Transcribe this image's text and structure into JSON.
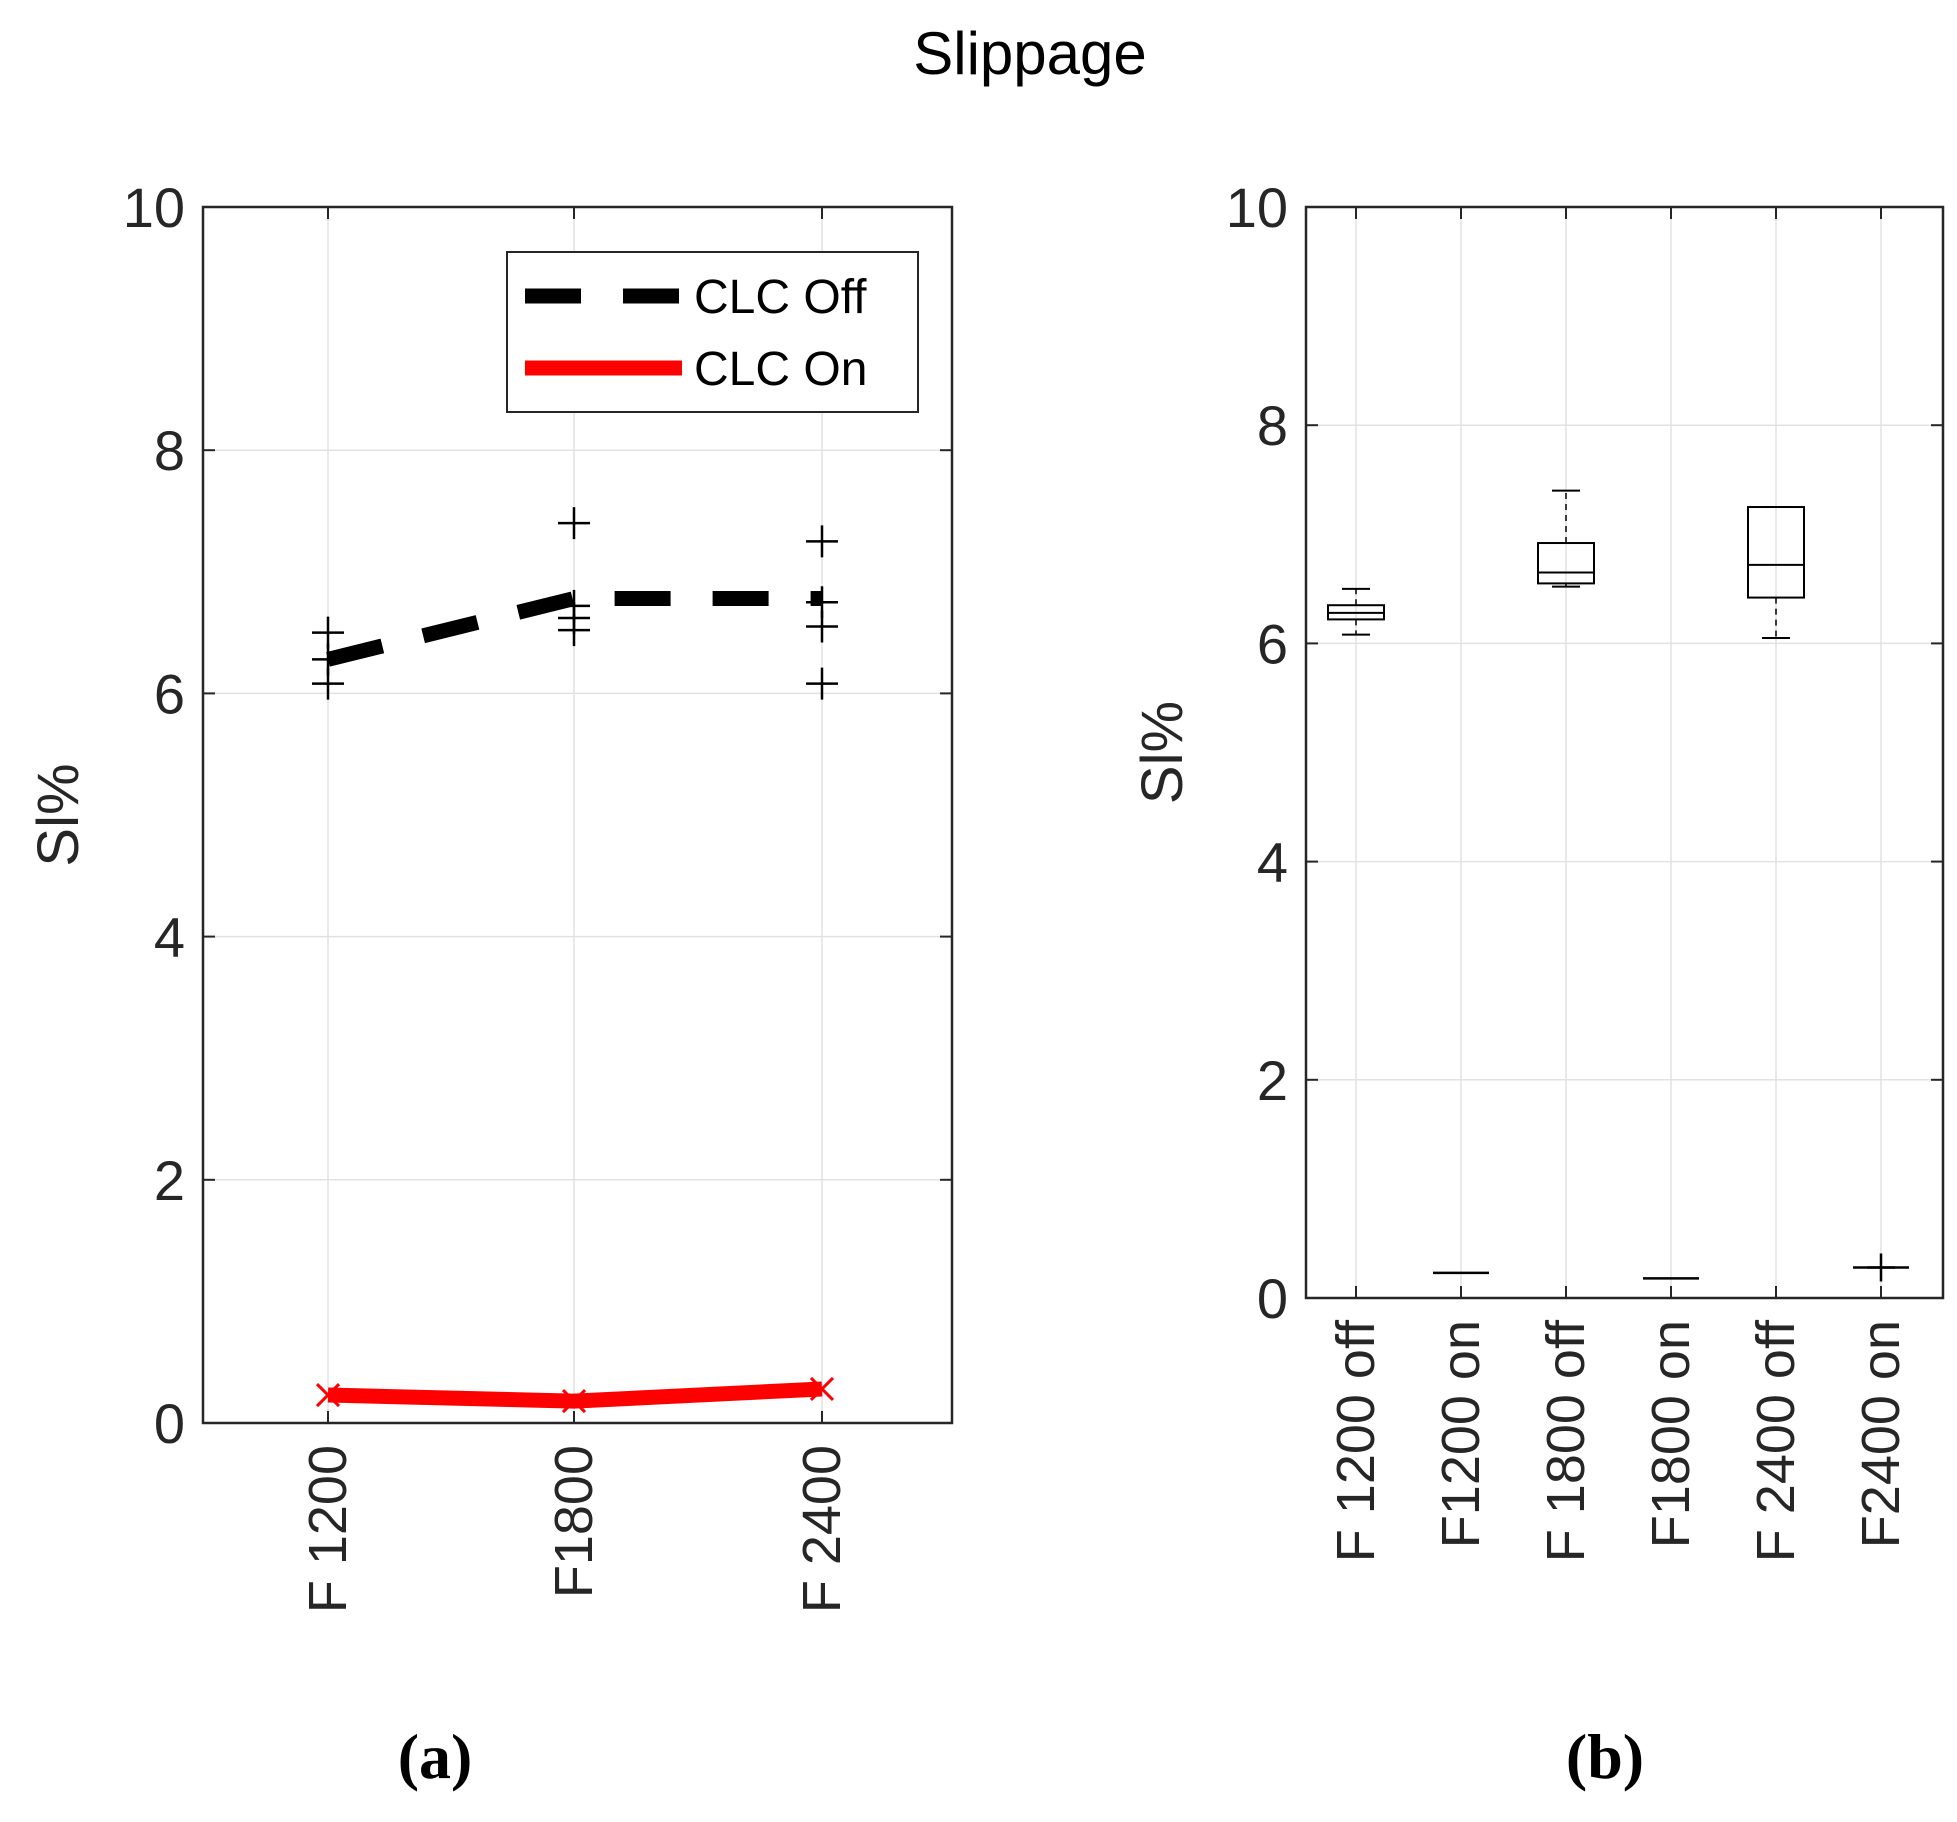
{
  "figure_title": "Slippage",
  "chart_data": [
    {
      "type": "line",
      "panel_label": "(a)",
      "title": "",
      "xlabel": "",
      "ylabel": "Sl%",
      "ylim": [
        0,
        10
      ],
      "yticks": [
        "0",
        "2",
        "4",
        "6",
        "8",
        "10"
      ],
      "categories": [
        "F 1200",
        "F1800",
        "F 2400"
      ],
      "grid": true,
      "legend": {
        "position": "top-right",
        "entries": [
          "CLC Off",
          "CLC On"
        ]
      },
      "series": [
        {
          "name": "CLC Off",
          "style": "dashed",
          "color": "#000000",
          "values": [
            6.28,
            6.78,
            6.78
          ]
        },
        {
          "name": "CLC On",
          "style": "solid",
          "color": "#ff0000",
          "values": [
            0.23,
            0.18,
            0.28
          ]
        }
      ],
      "scatter_points": [
        {
          "category": "F 1200",
          "values": [
            6.08,
            6.28,
            6.5
          ]
        },
        {
          "category": "F1800",
          "values": [
            6.52,
            6.62,
            6.72,
            7.4
          ]
        },
        {
          "category": "F 2400",
          "values": [
            6.08,
            6.55,
            6.75,
            7.25
          ]
        }
      ]
    },
    {
      "type": "box",
      "panel_label": "(b)",
      "title": "",
      "xlabel": "",
      "ylabel": "Sl%",
      "ylim": [
        0,
        10
      ],
      "yticks": [
        "0",
        "2",
        "4",
        "6",
        "8",
        "10"
      ],
      "categories": [
        "F 1200 off",
        "F1200 on",
        "F 1800 off",
        "F1800 on",
        "F 2400 off",
        "F2400 on"
      ],
      "grid": true,
      "boxes": [
        {
          "category": "F 1200 off",
          "whisker_low": 6.08,
          "q1": 6.22,
          "median": 6.28,
          "q3": 6.35,
          "whisker_high": 6.5
        },
        {
          "category": "F1200 on",
          "whisker_low": 0.23,
          "q1": 0.23,
          "median": 0.23,
          "q3": 0.23,
          "whisker_high": 0.23
        },
        {
          "category": "F 1800 off",
          "whisker_low": 6.52,
          "q1": 6.55,
          "median": 6.65,
          "q3": 6.92,
          "whisker_high": 7.4
        },
        {
          "category": "F1800 on",
          "whisker_low": 0.18,
          "q1": 0.18,
          "median": 0.18,
          "q3": 0.18,
          "whisker_high": 0.18
        },
        {
          "category": "F 2400 off",
          "whisker_low": 6.05,
          "q1": 6.42,
          "median": 6.72,
          "q3": 7.25,
          "whisker_high": 7.25
        },
        {
          "category": "F2400 on",
          "whisker_low": 0.28,
          "q1": 0.28,
          "median": 0.28,
          "q3": 0.28,
          "whisker_high": 0.28
        }
      ],
      "outliers": [
        {
          "category": "F2400 on",
          "value": 0.28
        }
      ]
    }
  ]
}
